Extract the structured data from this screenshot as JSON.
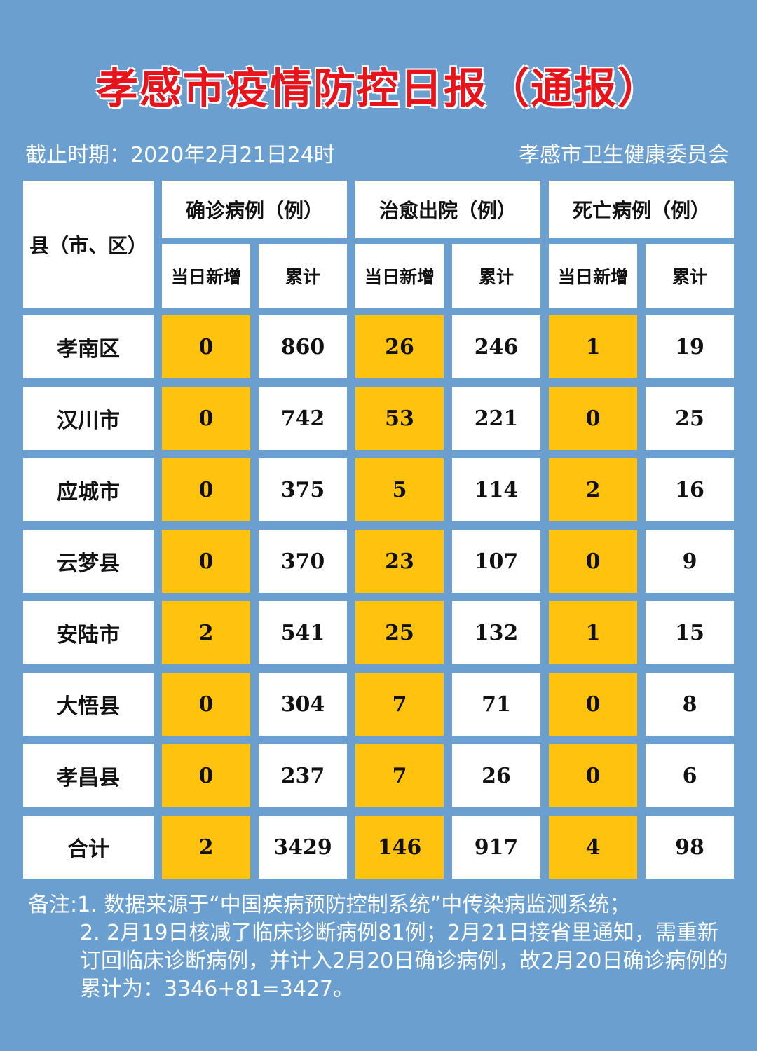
{
  "title": "孝感市疫情防控日报（通报）",
  "meta": {
    "deadline": "截止时期：2020年2月21日24时",
    "issuer": "孝感市卫生健康委员会"
  },
  "table": {
    "region_header": "县（市、区）",
    "groups": [
      "确诊病例（例）",
      "治愈出院（例）",
      "死亡病例（例）"
    ],
    "sub_headers": [
      "当日新增",
      "累计",
      "当日新增",
      "累计",
      "当日新增",
      "累计"
    ],
    "rows": [
      {
        "name": "孝南区",
        "values": [
          "0",
          "860",
          "26",
          "246",
          "1",
          "19"
        ]
      },
      {
        "name": "汉川市",
        "values": [
          "0",
          "742",
          "53",
          "221",
          "0",
          "25"
        ]
      },
      {
        "name": "应城市",
        "values": [
          "0",
          "375",
          "5",
          "114",
          "2",
          "16"
        ]
      },
      {
        "name": "云梦县",
        "values": [
          "0",
          "370",
          "23",
          "107",
          "0",
          "9"
        ]
      },
      {
        "name": "安陆市",
        "values": [
          "2",
          "541",
          "25",
          "132",
          "1",
          "15"
        ]
      },
      {
        "name": "大悟县",
        "values": [
          "0",
          "304",
          "7",
          "71",
          "0",
          "8"
        ]
      },
      {
        "name": "孝昌县",
        "values": [
          "0",
          "237",
          "7",
          "26",
          "0",
          "6"
        ]
      },
      {
        "name": "合计",
        "values": [
          "2",
          "3429",
          "146",
          "917",
          "4",
          "98"
        ]
      }
    ],
    "highlight_color": "#ffc20e"
  },
  "notes": [
    "备注:1. 数据来源于“中国疾病预防控制系统”中传染病监测系统；",
    "2. 2月19日核减了临床诊断病例81例；2月21日接省里通知，需重新订回临床诊断病例，并计入2月20日确诊病例，故2月20日确诊病例的累计为：3346+81=3427。"
  ]
}
